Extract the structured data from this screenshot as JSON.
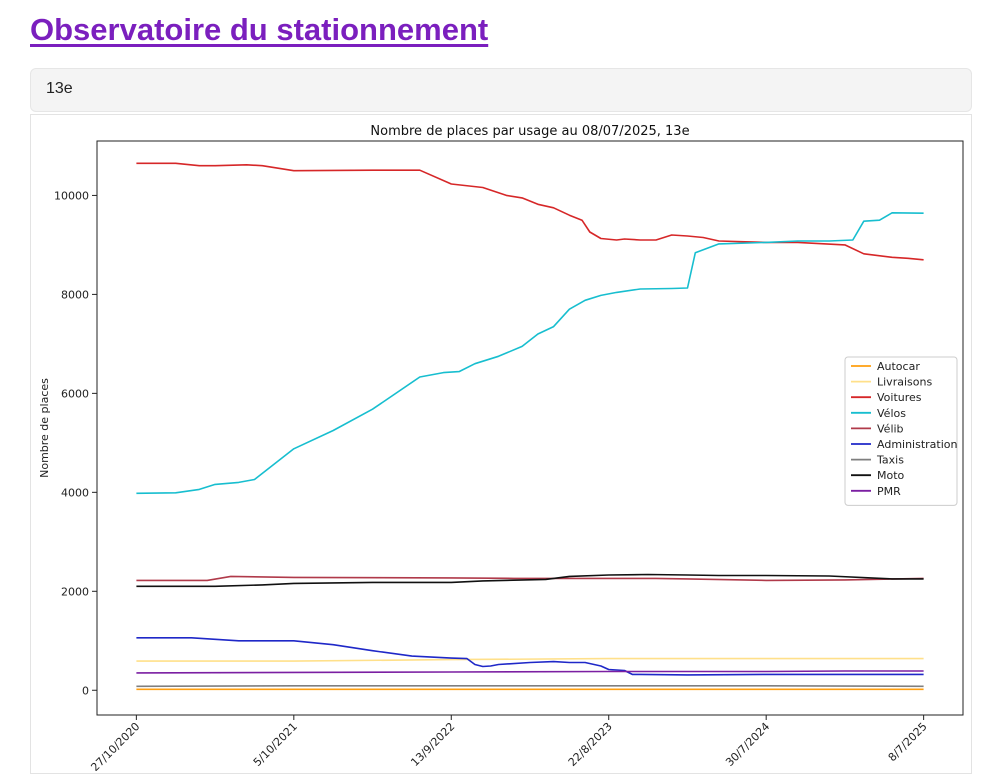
{
  "page": {
    "title": "Observatoire du stationnement",
    "arrondissement": "13e"
  },
  "chart_data": {
    "type": "line",
    "title": "Nombre de places par usage au 08/07/2025, 13e",
    "xlabel": "",
    "ylabel": "Nombre de places",
    "ylim": [
      -500,
      11100
    ],
    "xlim": [
      -0.25,
      5.25
    ],
    "yticks": [
      0,
      2000,
      4000,
      6000,
      8000,
      10000
    ],
    "xticks": [
      0,
      1,
      2,
      3,
      4,
      5
    ],
    "xtick_labels": [
      "27/10/2020",
      "5/10/2021",
      "13/9/2022",
      "22/8/2023",
      "30/7/2024",
      "8/7/2025"
    ],
    "x_unit_note": "x positions in units of the tick interval, 0 = 27/10/2020, 5 = 8/7/2025",
    "legend_position": "right",
    "grid": false,
    "series": [
      {
        "name": "Autocar",
        "color": "#ff9f10",
        "points": [
          [
            0,
            20
          ],
          [
            5,
            20
          ]
        ]
      },
      {
        "name": "Livraisons",
        "color": "#ffe08a",
        "points": [
          [
            0,
            590
          ],
          [
            1,
            590
          ],
          [
            2,
            620
          ],
          [
            3,
            640
          ],
          [
            4,
            640
          ],
          [
            5,
            640
          ]
        ]
      },
      {
        "name": "Voitures",
        "color": "#d62728",
        "points": [
          [
            0,
            10650
          ],
          [
            0.25,
            10650
          ],
          [
            0.4,
            10600
          ],
          [
            0.5,
            10600
          ],
          [
            0.7,
            10620
          ],
          [
            0.8,
            10600
          ],
          [
            1.0,
            10500
          ],
          [
            1.5,
            10510
          ],
          [
            1.8,
            10510
          ],
          [
            2.0,
            10230
          ],
          [
            2.2,
            10160
          ],
          [
            2.35,
            10000
          ],
          [
            2.45,
            9950
          ],
          [
            2.55,
            9820
          ],
          [
            2.65,
            9750
          ],
          [
            2.75,
            9600
          ],
          [
            2.83,
            9500
          ],
          [
            2.88,
            9260
          ],
          [
            2.95,
            9130
          ],
          [
            3.05,
            9100
          ],
          [
            3.1,
            9120
          ],
          [
            3.2,
            9100
          ],
          [
            3.3,
            9100
          ],
          [
            3.4,
            9200
          ],
          [
            3.5,
            9180
          ],
          [
            3.6,
            9150
          ],
          [
            3.7,
            9080
          ],
          [
            4.0,
            9050
          ],
          [
            4.2,
            9050
          ],
          [
            4.5,
            9000
          ],
          [
            4.62,
            8820
          ],
          [
            4.8,
            8750
          ],
          [
            4.9,
            8730
          ],
          [
            5.0,
            8700
          ]
        ]
      },
      {
        "name": "Vélos",
        "color": "#17becf",
        "points": [
          [
            0,
            3980
          ],
          [
            0.25,
            3990
          ],
          [
            0.4,
            4060
          ],
          [
            0.5,
            4160
          ],
          [
            0.65,
            4200
          ],
          [
            0.75,
            4260
          ],
          [
            1.0,
            4880
          ],
          [
            1.25,
            5250
          ],
          [
            1.5,
            5680
          ],
          [
            1.8,
            6330
          ],
          [
            1.95,
            6420
          ],
          [
            2.05,
            6440
          ],
          [
            2.15,
            6600
          ],
          [
            2.3,
            6750
          ],
          [
            2.45,
            6950
          ],
          [
            2.55,
            7200
          ],
          [
            2.65,
            7350
          ],
          [
            2.75,
            7700
          ],
          [
            2.85,
            7880
          ],
          [
            2.95,
            7980
          ],
          [
            3.05,
            8040
          ],
          [
            3.2,
            8110
          ],
          [
            3.4,
            8120
          ],
          [
            3.5,
            8130
          ],
          [
            3.55,
            8840
          ],
          [
            3.7,
            9020
          ],
          [
            4.0,
            9050
          ],
          [
            4.2,
            9080
          ],
          [
            4.4,
            9080
          ],
          [
            4.55,
            9100
          ],
          [
            4.62,
            9480
          ],
          [
            4.72,
            9500
          ],
          [
            4.8,
            9650
          ],
          [
            5.0,
            9640
          ]
        ]
      },
      {
        "name": "Vélib",
        "color": "#b03a4a",
        "points": [
          [
            0,
            2220
          ],
          [
            0.3,
            2220
          ],
          [
            0.45,
            2220
          ],
          [
            0.6,
            2300
          ],
          [
            1.0,
            2280
          ],
          [
            2.0,
            2270
          ],
          [
            2.4,
            2260
          ],
          [
            3.0,
            2260
          ],
          [
            3.3,
            2260
          ],
          [
            3.5,
            2250
          ],
          [
            4.0,
            2220
          ],
          [
            4.5,
            2230
          ],
          [
            5.0,
            2260
          ]
        ]
      },
      {
        "name": "Administration",
        "color": "#1f28c8",
        "points": [
          [
            0,
            1060
          ],
          [
            0.35,
            1060
          ],
          [
            0.65,
            1000
          ],
          [
            1.0,
            1000
          ],
          [
            1.25,
            920
          ],
          [
            1.5,
            800
          ],
          [
            1.75,
            690
          ],
          [
            2.0,
            650
          ],
          [
            2.1,
            640
          ],
          [
            2.15,
            520
          ],
          [
            2.2,
            480
          ],
          [
            2.25,
            490
          ],
          [
            2.3,
            520
          ],
          [
            2.5,
            560
          ],
          [
            2.65,
            580
          ],
          [
            2.75,
            560
          ],
          [
            2.85,
            560
          ],
          [
            2.95,
            490
          ],
          [
            3.0,
            420
          ],
          [
            3.05,
            410
          ],
          [
            3.1,
            400
          ],
          [
            3.15,
            320
          ],
          [
            3.2,
            320
          ],
          [
            3.5,
            310
          ],
          [
            4.0,
            320
          ],
          [
            5.0,
            320
          ]
        ]
      },
      {
        "name": "Taxis",
        "color": "#7f7f7f",
        "points": [
          [
            0,
            80
          ],
          [
            1,
            90
          ],
          [
            2,
            90
          ],
          [
            3,
            90
          ],
          [
            4,
            90
          ],
          [
            5,
            80
          ]
        ]
      },
      {
        "name": "Moto",
        "color": "#111111",
        "points": [
          [
            0,
            2100
          ],
          [
            0.5,
            2100
          ],
          [
            0.8,
            2130
          ],
          [
            1.0,
            2160
          ],
          [
            1.5,
            2180
          ],
          [
            2.0,
            2180
          ],
          [
            2.2,
            2210
          ],
          [
            2.6,
            2240
          ],
          [
            2.75,
            2300
          ],
          [
            3.0,
            2330
          ],
          [
            3.25,
            2340
          ],
          [
            3.5,
            2330
          ],
          [
            3.7,
            2320
          ],
          [
            4.0,
            2320
          ],
          [
            4.4,
            2310
          ],
          [
            4.8,
            2250
          ],
          [
            5.0,
            2250
          ]
        ]
      },
      {
        "name": "PMR",
        "color": "#7b1fa2",
        "points": [
          [
            0,
            350
          ],
          [
            1,
            360
          ],
          [
            2,
            370
          ],
          [
            3,
            380
          ],
          [
            4,
            380
          ],
          [
            4.5,
            390
          ],
          [
            5.0,
            390
          ]
        ]
      }
    ]
  }
}
